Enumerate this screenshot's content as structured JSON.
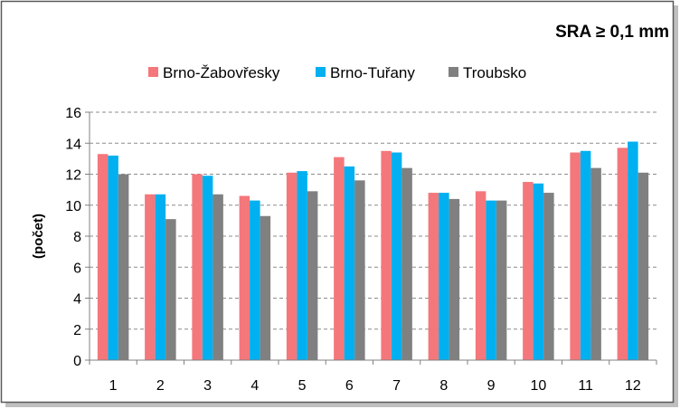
{
  "chart_data": {
    "type": "bar",
    "title": "SRA  ≥  0,1 mm",
    "ylabel": "(počet)",
    "xlabel": "",
    "categories": [
      "1",
      "2",
      "3",
      "4",
      "5",
      "6",
      "7",
      "8",
      "9",
      "10",
      "11",
      "12"
    ],
    "ylim": [
      0,
      16
    ],
    "yticks": [
      0,
      2,
      4,
      6,
      8,
      10,
      12,
      14,
      16
    ],
    "grid": true,
    "legend_position": "top",
    "series": [
      {
        "name": "Brno-Žabovřesky",
        "color": "#f4777b",
        "values": [
          13.3,
          10.7,
          12.0,
          10.6,
          12.1,
          13.1,
          13.5,
          10.8,
          10.9,
          11.5,
          13.4,
          13.7
        ]
      },
      {
        "name": "Brno-Tuřany",
        "color": "#00b0f0",
        "values": [
          13.2,
          10.7,
          11.9,
          10.3,
          12.2,
          12.5,
          13.4,
          10.8,
          10.3,
          11.4,
          13.5,
          14.1
        ]
      },
      {
        "name": "Troubsko",
        "color": "#808080",
        "values": [
          12.0,
          9.1,
          10.7,
          9.3,
          10.9,
          11.6,
          12.4,
          10.4,
          10.3,
          10.8,
          12.4,
          12.1
        ]
      }
    ]
  }
}
